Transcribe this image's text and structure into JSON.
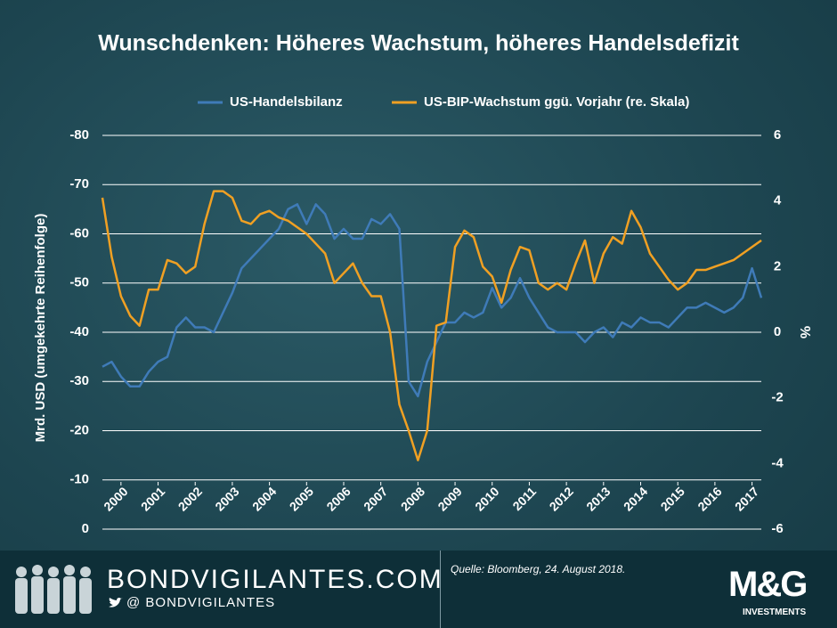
{
  "chart_data": {
    "type": "line",
    "title": "Wunschdenken: Höheres Wachstum, höheres Handelsdefizit",
    "y_label": "Mrd. USD (umgekehrte Reihenfolge)",
    "y2_label": "%",
    "x": [
      1999.5,
      1999.75,
      2000,
      2000.25,
      2000.5,
      2000.75,
      2001,
      2001.25,
      2001.5,
      2001.75,
      2002,
      2002.25,
      2002.5,
      2002.75,
      2003,
      2003.25,
      2003.5,
      2003.75,
      2004,
      2004.25,
      2004.5,
      2004.75,
      2005,
      2005.25,
      2005.5,
      2005.75,
      2006,
      2006.25,
      2006.5,
      2006.75,
      2007,
      2007.25,
      2007.5,
      2007.75,
      2008,
      2008.25,
      2008.5,
      2008.75,
      2009,
      2009.25,
      2009.5,
      2009.75,
      2010,
      2010.25,
      2010.5,
      2010.75,
      2011,
      2011.25,
      2011.5,
      2011.75,
      2012,
      2012.25,
      2012.5,
      2012.75,
      2013,
      2013.25,
      2013.5,
      2013.75,
      2014,
      2014.25,
      2014.5,
      2014.75,
      2015,
      2015.25,
      2015.5,
      2015.75,
      2016,
      2016.25,
      2016.5,
      2016.75,
      2017,
      2017.25
    ],
    "xlim": [
      1999.5,
      2017.25
    ],
    "xticks": [
      2000,
      2001,
      2002,
      2003,
      2004,
      2005,
      2006,
      2007,
      2008,
      2009,
      2010,
      2011,
      2012,
      2013,
      2014,
      2015,
      2016,
      2017
    ],
    "ylim": [
      0,
      -80
    ],
    "yticks": [
      -80,
      -70,
      -60,
      -50,
      -40,
      -30,
      -20,
      -10,
      0
    ],
    "y2lim": [
      -6,
      6
    ],
    "y2ticks": [
      -6,
      -4,
      -2,
      0,
      2,
      4,
      6
    ],
    "grid": true,
    "series": [
      {
        "name": "US-Handelsbilanz",
        "color": "#3f7bb8",
        "values": [
          -33,
          -34,
          -31,
          -29,
          -29,
          -32,
          -34,
          -35,
          -41,
          -43,
          -41,
          -41,
          -40,
          -44,
          -48,
          -53,
          -55,
          -57,
          -59,
          -61,
          -65,
          -66,
          -62,
          -66,
          -64,
          -59,
          -61,
          -59,
          -59,
          -63,
          -62,
          -64,
          -61,
          -30,
          -27,
          -34,
          -38,
          -42,
          -42,
          -44,
          -43,
          -44,
          -49,
          -45,
          -47,
          -51,
          -47,
          -44,
          -41,
          -40,
          -40,
          -40,
          -38,
          -40,
          -41,
          -39,
          -42,
          -41,
          -43,
          -42,
          -42,
          -41,
          -43,
          -45,
          -45,
          -46,
          -45,
          -44,
          -45,
          -47,
          -53,
          -47
        ]
      },
      {
        "name": "US-BIP-Wachstum ggü. Vorjahr (re. Skala)",
        "color": "#f0a023",
        "axis": "y2",
        "values": [
          4.1,
          2.3,
          1.1,
          0.5,
          0.2,
          1.3,
          1.3,
          2.2,
          2.1,
          1.8,
          2.0,
          3.3,
          4.3,
          4.3,
          4.1,
          3.4,
          3.3,
          3.6,
          3.7,
          3.5,
          3.4,
          3.2,
          3.0,
          2.7,
          2.4,
          1.5,
          1.8,
          2.1,
          1.5,
          1.1,
          1.1,
          0.0,
          -2.2,
          -3.0,
          -3.9,
          -3.0,
          0.2,
          0.3,
          2.6,
          3.1,
          2.9,
          2.0,
          1.7,
          0.9,
          1.9,
          2.6,
          2.5,
          1.5,
          1.3,
          1.5,
          1.3,
          2.1,
          2.8,
          1.5,
          2.4,
          2.9,
          2.7,
          3.7,
          3.2,
          2.4,
          2.0,
          1.6,
          1.3,
          1.5,
          1.9,
          1.9,
          2.0,
          2.1,
          2.2,
          2.4,
          2.6,
          2.8
        ]
      }
    ]
  },
  "footer": {
    "brand": "BONDVIGILANTES.COM",
    "handle": "@  BONDVIGILANTES",
    "source": "Quelle:  Bloomberg, 24. August 2018.",
    "logo": "M&G",
    "logo_sub": "INVESTMENTS"
  }
}
